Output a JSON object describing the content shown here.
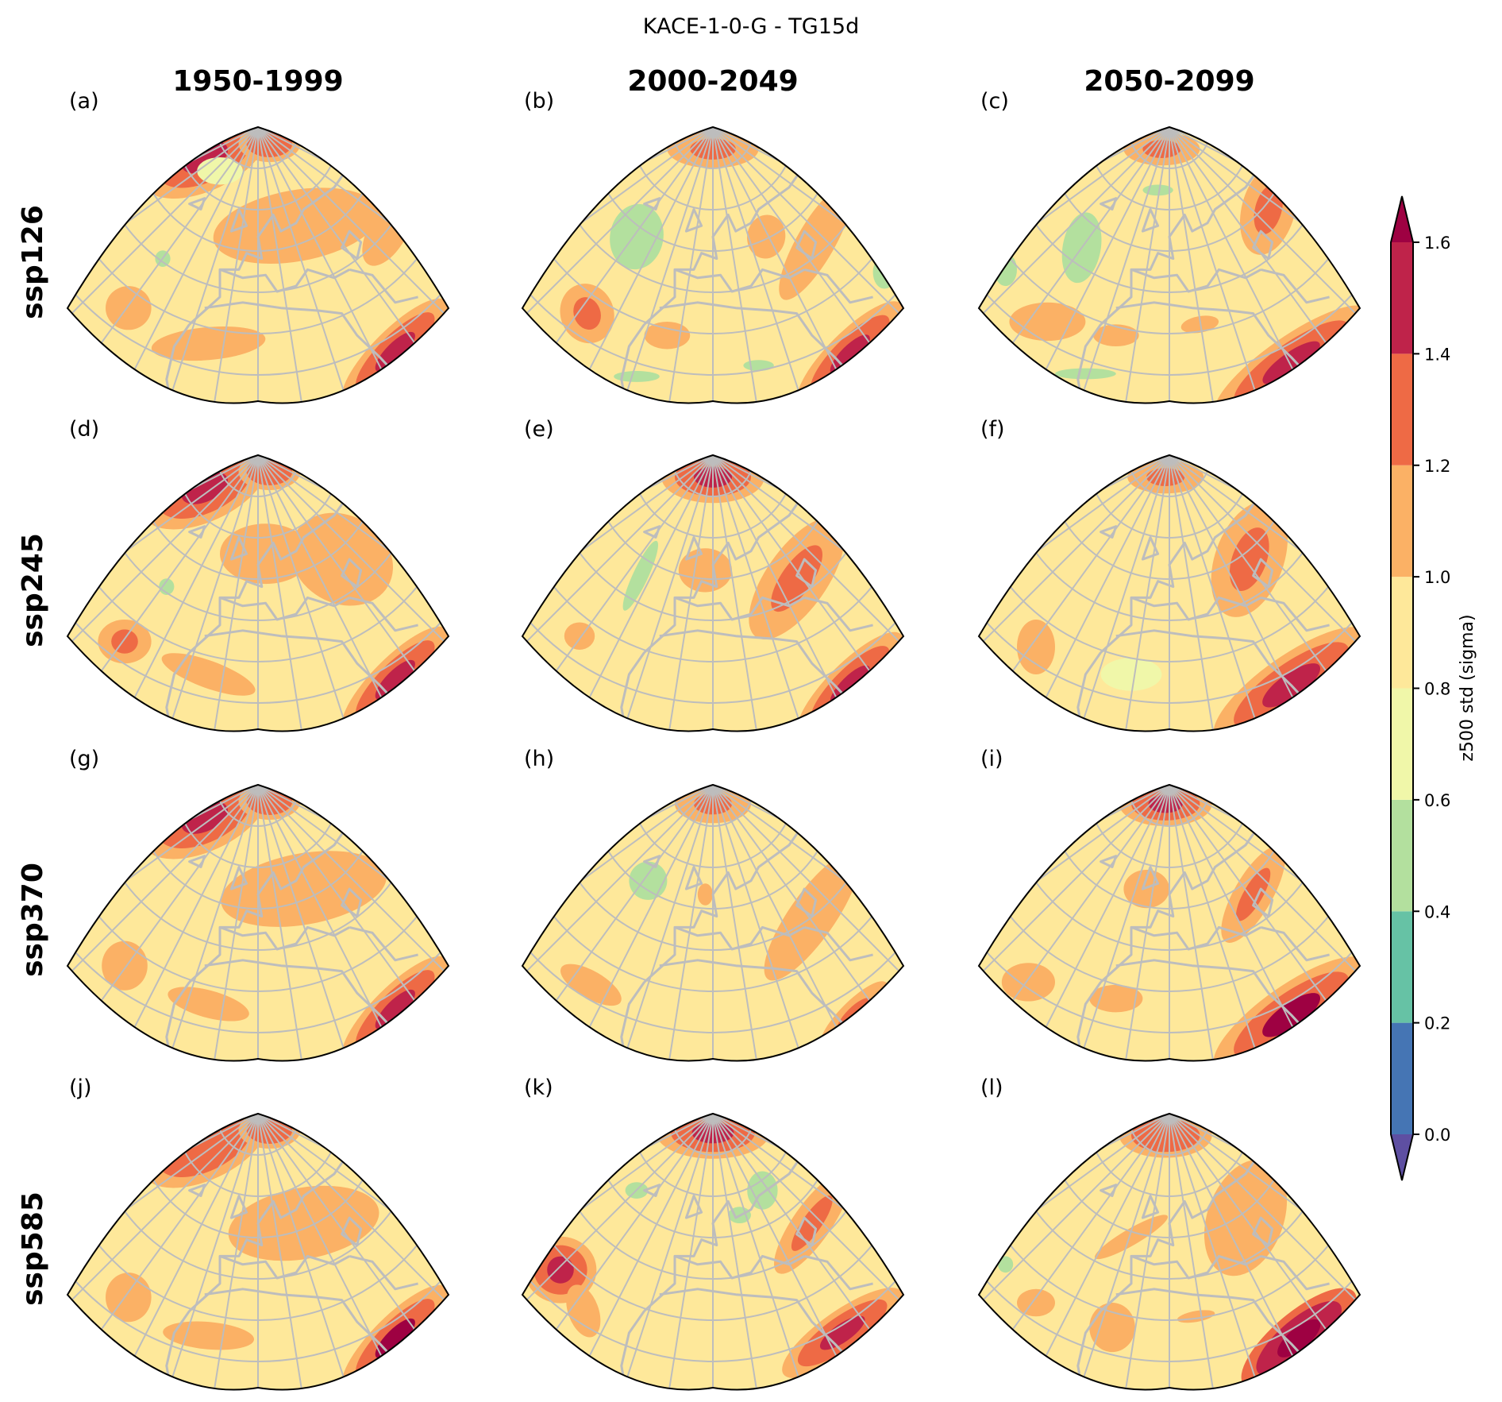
{
  "chart_data": {
    "type": "heatmap",
    "subtype": "filled-contour map grid",
    "title": "KACE-1-0-G - TG15d",
    "columns": [
      "1950-1999",
      "2000-2049",
      "2050-2099"
    ],
    "rows": [
      "ssp126",
      "ssp245",
      "ssp370",
      "ssp585"
    ],
    "panel_labels": [
      "(a)",
      "(b)",
      "(c)",
      "(d)",
      "(e)",
      "(f)",
      "(g)",
      "(h)",
      "(i)",
      "(j)",
      "(k)",
      "(l)"
    ],
    "region": "Europe / North Atlantic / North Africa (conic projection)",
    "colorbar": {
      "label": "z500 std (sigma)",
      "levels": [
        0.0,
        0.2,
        0.4,
        0.6,
        0.8,
        1.0,
        1.2,
        1.4,
        1.6
      ],
      "tick_labels": [
        "0.0",
        "0.2",
        "0.4",
        "0.6",
        "0.8",
        "1.0",
        "1.2",
        "1.4",
        "1.6"
      ],
      "colors": [
        "#4575b4",
        "#66c2a5",
        "#b3e09e",
        "#f0f7a9",
        "#fee89a",
        "#fbb165",
        "#ee6a45",
        "#bf234a"
      ],
      "under_color": "#5e4fa2",
      "over_color": "#9e0142",
      "extend": "both",
      "range": [
        0.0,
        1.6
      ]
    },
    "panels": [
      {
        "id": "a",
        "scenario": "ssp126",
        "period": "1950-1999",
        "background": 0.9,
        "blobs": [
          {
            "u": 0.36,
            "v": 0.11,
            "rx": 0.13,
            "ry": 0.09,
            "rot": -25,
            "value": 1.3,
            "peak": 1.5
          },
          {
            "u": 0.53,
            "v": 0.06,
            "rx": 0.06,
            "ry": 0.05,
            "rot": 0,
            "value": 1.3
          },
          {
            "u": 0.6,
            "v": 0.36,
            "rx": 0.22,
            "ry": 0.13,
            "rot": -10,
            "value": 1.1
          },
          {
            "u": 0.84,
            "v": 0.38,
            "rx": 0.05,
            "ry": 0.14,
            "rot": 30,
            "value": 1.1
          },
          {
            "u": 0.16,
            "v": 0.66,
            "rx": 0.06,
            "ry": 0.08,
            "rot": 0,
            "value": 1.1
          },
          {
            "u": 0.37,
            "v": 0.79,
            "rx": 0.15,
            "ry": 0.06,
            "rot": -5,
            "value": 1.1
          },
          {
            "u": 0.86,
            "v": 0.82,
            "rx": 0.14,
            "ry": 0.06,
            "rot": -45,
            "value": 1.3,
            "peak": 1.5
          },
          {
            "u": 0.25,
            "v": 0.48,
            "rx": 0.02,
            "ry": 0.03,
            "rot": 0,
            "value": 0.5
          },
          {
            "u": 0.4,
            "v": 0.16,
            "rx": 0.06,
            "ry": 0.05,
            "rot": 0,
            "value": 0.7
          }
        ]
      },
      {
        "id": "b",
        "scenario": "ssp126",
        "period": "2000-2049",
        "background": 0.8,
        "blobs": [
          {
            "u": 0.5,
            "v": 0.08,
            "rx": 0.12,
            "ry": 0.07,
            "rot": 0,
            "value": 1.1,
            "peak": 1.3
          },
          {
            "u": 0.3,
            "v": 0.4,
            "rx": 0.07,
            "ry": 0.12,
            "rot": 10,
            "value": 0.5
          },
          {
            "u": 0.64,
            "v": 0.4,
            "rx": 0.05,
            "ry": 0.08,
            "rot": 10,
            "value": 1.1
          },
          {
            "u": 0.77,
            "v": 0.42,
            "rx": 0.05,
            "ry": 0.24,
            "rot": 30,
            "value": 1.1
          },
          {
            "u": 0.17,
            "v": 0.68,
            "rx": 0.07,
            "ry": 0.11,
            "rot": -20,
            "value": 1.1,
            "peak": 1.3
          },
          {
            "u": 0.38,
            "v": 0.76,
            "rx": 0.06,
            "ry": 0.05,
            "rot": 0,
            "value": 1.1
          },
          {
            "u": 0.86,
            "v": 0.83,
            "rx": 0.14,
            "ry": 0.06,
            "rot": -45,
            "value": 1.3,
            "peak": 1.5
          },
          {
            "u": 0.3,
            "v": 0.91,
            "rx": 0.06,
            "ry": 0.02,
            "rot": 0,
            "value": 0.5
          },
          {
            "u": 0.62,
            "v": 0.87,
            "rx": 0.04,
            "ry": 0.02,
            "rot": 0,
            "value": 0.5
          },
          {
            "u": 0.95,
            "v": 0.53,
            "rx": 0.03,
            "ry": 0.06,
            "rot": 0,
            "value": 0.5
          }
        ]
      },
      {
        "id": "c",
        "scenario": "ssp126",
        "period": "2050-2099",
        "background": 0.8,
        "blobs": [
          {
            "u": 0.48,
            "v": 0.08,
            "rx": 0.1,
            "ry": 0.06,
            "rot": 0,
            "value": 1.1,
            "peak": 1.3
          },
          {
            "u": 0.27,
            "v": 0.44,
            "rx": 0.05,
            "ry": 0.13,
            "rot": 10,
            "value": 0.5
          },
          {
            "u": 0.47,
            "v": 0.23,
            "rx": 0.04,
            "ry": 0.02,
            "rot": 0,
            "value": 0.5
          },
          {
            "u": 0.76,
            "v": 0.3,
            "rx": 0.07,
            "ry": 0.17,
            "rot": 15,
            "value": 1.1,
            "peak": 1.3
          },
          {
            "u": 0.18,
            "v": 0.71,
            "rx": 0.1,
            "ry": 0.07,
            "rot": 0,
            "value": 1.1
          },
          {
            "u": 0.36,
            "v": 0.76,
            "rx": 0.06,
            "ry": 0.04,
            "rot": 0,
            "value": 1.1
          },
          {
            "u": 0.58,
            "v": 0.72,
            "rx": 0.05,
            "ry": 0.03,
            "rot": -10,
            "value": 1.1
          },
          {
            "u": 0.82,
            "v": 0.86,
            "rx": 0.18,
            "ry": 0.07,
            "rot": -35,
            "value": 1.3,
            "peak": 1.5
          },
          {
            "u": 0.28,
            "v": 0.9,
            "rx": 0.08,
            "ry": 0.02,
            "rot": 0,
            "value": 0.5
          },
          {
            "u": 0.07,
            "v": 0.52,
            "rx": 0.03,
            "ry": 0.06,
            "rot": 0,
            "value": 0.5
          }
        ]
      },
      {
        "id": "d",
        "scenario": "ssp245",
        "period": "1950-1999",
        "background": 0.9,
        "blobs": [
          {
            "u": 0.36,
            "v": 0.12,
            "rx": 0.13,
            "ry": 0.09,
            "rot": -25,
            "value": 1.3,
            "peak": 1.5
          },
          {
            "u": 0.53,
            "v": 0.06,
            "rx": 0.06,
            "ry": 0.05,
            "rot": 0,
            "value": 1.3
          },
          {
            "u": 0.52,
            "v": 0.36,
            "rx": 0.12,
            "ry": 0.11,
            "rot": 0,
            "value": 1.1
          },
          {
            "u": 0.72,
            "v": 0.38,
            "rx": 0.14,
            "ry": 0.16,
            "rot": 30,
            "value": 1.1
          },
          {
            "u": 0.15,
            "v": 0.68,
            "rx": 0.07,
            "ry": 0.08,
            "rot": 0,
            "value": 1.1,
            "peak": 1.3
          },
          {
            "u": 0.37,
            "v": 0.8,
            "rx": 0.13,
            "ry": 0.05,
            "rot": 20,
            "value": 1.1
          },
          {
            "u": 0.86,
            "v": 0.82,
            "rx": 0.14,
            "ry": 0.06,
            "rot": -45,
            "value": 1.3,
            "peak": 1.5
          },
          {
            "u": 0.26,
            "v": 0.48,
            "rx": 0.02,
            "ry": 0.03,
            "rot": 0,
            "value": 0.5
          }
        ]
      },
      {
        "id": "e",
        "scenario": "ssp245",
        "period": "2000-2049",
        "background": 0.8,
        "blobs": [
          {
            "u": 0.5,
            "v": 0.08,
            "rx": 0.1,
            "ry": 0.07,
            "rot": 0,
            "value": 1.3,
            "peak": 1.5
          },
          {
            "u": 0.31,
            "v": 0.44,
            "rx": 0.02,
            "ry": 0.14,
            "rot": 25,
            "value": 0.5
          },
          {
            "u": 0.48,
            "v": 0.42,
            "rx": 0.07,
            "ry": 0.08,
            "rot": 0,
            "value": 1.1
          },
          {
            "u": 0.72,
            "v": 0.45,
            "rx": 0.08,
            "ry": 0.26,
            "rot": 35,
            "value": 1.1,
            "peak": 1.3
          },
          {
            "u": 0.15,
            "v": 0.66,
            "rx": 0.04,
            "ry": 0.05,
            "rot": 0,
            "value": 1.1
          },
          {
            "u": 0.86,
            "v": 0.84,
            "rx": 0.14,
            "ry": 0.06,
            "rot": -45,
            "value": 1.3,
            "peak": 1.5
          }
        ]
      },
      {
        "id": "f",
        "scenario": "ssp245",
        "period": "2050-2099",
        "background": 0.9,
        "blobs": [
          {
            "u": 0.49,
            "v": 0.08,
            "rx": 0.1,
            "ry": 0.06,
            "rot": 0,
            "value": 1.1,
            "peak": 1.3
          },
          {
            "u": 0.71,
            "v": 0.38,
            "rx": 0.09,
            "ry": 0.22,
            "rot": 20,
            "value": 1.1,
            "peak": 1.3
          },
          {
            "u": 0.15,
            "v": 0.7,
            "rx": 0.05,
            "ry": 0.1,
            "rot": 0,
            "value": 1.1
          },
          {
            "u": 0.82,
            "v": 0.84,
            "rx": 0.18,
            "ry": 0.08,
            "rot": -35,
            "value": 1.3,
            "peak": 1.5
          },
          {
            "u": 0.4,
            "v": 0.8,
            "rx": 0.08,
            "ry": 0.06,
            "rot": 0,
            "value": 0.7
          }
        ]
      },
      {
        "id": "g",
        "scenario": "ssp370",
        "period": "1950-1999",
        "background": 0.9,
        "blobs": [
          {
            "u": 0.36,
            "v": 0.12,
            "rx": 0.13,
            "ry": 0.09,
            "rot": -25,
            "value": 1.3,
            "peak": 1.5
          },
          {
            "u": 0.53,
            "v": 0.06,
            "rx": 0.06,
            "ry": 0.05,
            "rot": 0,
            "value": 1.3
          },
          {
            "u": 0.62,
            "v": 0.38,
            "rx": 0.22,
            "ry": 0.13,
            "rot": -10,
            "value": 1.1
          },
          {
            "u": 0.15,
            "v": 0.66,
            "rx": 0.06,
            "ry": 0.09,
            "rot": 0,
            "value": 1.1
          },
          {
            "u": 0.37,
            "v": 0.8,
            "rx": 0.11,
            "ry": 0.05,
            "rot": 15,
            "value": 1.1
          },
          {
            "u": 0.86,
            "v": 0.82,
            "rx": 0.14,
            "ry": 0.06,
            "rot": -45,
            "value": 1.3,
            "peak": 1.5
          }
        ]
      },
      {
        "id": "h",
        "scenario": "ssp370",
        "period": "2000-2049",
        "background": 0.8,
        "blobs": [
          {
            "u": 0.5,
            "v": 0.07,
            "rx": 0.1,
            "ry": 0.07,
            "rot": 0,
            "value": 1.1,
            "peak": 1.3
          },
          {
            "u": 0.33,
            "v": 0.35,
            "rx": 0.05,
            "ry": 0.07,
            "rot": 10,
            "value": 0.5
          },
          {
            "u": 0.48,
            "v": 0.4,
            "rx": 0.02,
            "ry": 0.04,
            "rot": 0,
            "value": 1.1
          },
          {
            "u": 0.76,
            "v": 0.48,
            "rx": 0.06,
            "ry": 0.28,
            "rot": 35,
            "value": 1.1
          },
          {
            "u": 0.18,
            "v": 0.73,
            "rx": 0.09,
            "ry": 0.05,
            "rot": 30,
            "value": 1.1
          },
          {
            "u": 0.87,
            "v": 0.84,
            "rx": 0.12,
            "ry": 0.05,
            "rot": -45,
            "value": 1.1,
            "peak": 1.3
          },
          {
            "u": 0.15,
            "v": 0.93,
            "rx": 0.06,
            "ry": 0.02,
            "rot": 20,
            "value": 0.5
          }
        ]
      },
      {
        "id": "i",
        "scenario": "ssp370",
        "period": "2050-2099",
        "background": 0.8,
        "blobs": [
          {
            "u": 0.49,
            "v": 0.07,
            "rx": 0.09,
            "ry": 0.06,
            "rot": 0,
            "value": 1.3,
            "peak": 1.5
          },
          {
            "u": 0.44,
            "v": 0.38,
            "rx": 0.06,
            "ry": 0.07,
            "rot": 0,
            "value": 1.1
          },
          {
            "u": 0.72,
            "v": 0.4,
            "rx": 0.05,
            "ry": 0.2,
            "rot": 30,
            "value": 1.1,
            "peak": 1.3
          },
          {
            "u": 0.13,
            "v": 0.72,
            "rx": 0.07,
            "ry": 0.07,
            "rot": 0,
            "value": 1.1
          },
          {
            "u": 0.36,
            "v": 0.78,
            "rx": 0.07,
            "ry": 0.05,
            "rot": 0,
            "value": 1.1
          },
          {
            "u": 0.82,
            "v": 0.84,
            "rx": 0.18,
            "ry": 0.08,
            "rot": -35,
            "value": 1.3,
            "peak": 1.6
          }
        ]
      },
      {
        "id": "j",
        "scenario": "ssp585",
        "period": "1950-1999",
        "background": 0.9,
        "blobs": [
          {
            "u": 0.36,
            "v": 0.12,
            "rx": 0.13,
            "ry": 0.09,
            "rot": -25,
            "value": 1.3
          },
          {
            "u": 0.53,
            "v": 0.06,
            "rx": 0.06,
            "ry": 0.05,
            "rot": 0,
            "value": 1.3
          },
          {
            "u": 0.62,
            "v": 0.4,
            "rx": 0.2,
            "ry": 0.13,
            "rot": -10,
            "value": 1.1
          },
          {
            "u": 0.16,
            "v": 0.67,
            "rx": 0.06,
            "ry": 0.09,
            "rot": 0,
            "value": 1.1
          },
          {
            "u": 0.37,
            "v": 0.81,
            "rx": 0.12,
            "ry": 0.05,
            "rot": 5,
            "value": 1.1
          },
          {
            "u": 0.86,
            "v": 0.82,
            "rx": 0.14,
            "ry": 0.06,
            "rot": -45,
            "value": 1.3,
            "peak": 1.6
          }
        ]
      },
      {
        "id": "k",
        "scenario": "ssp585",
        "period": "2000-2049",
        "background": 0.8,
        "blobs": [
          {
            "u": 0.5,
            "v": 0.07,
            "rx": 0.11,
            "ry": 0.07,
            "rot": 0,
            "value": 1.3,
            "peak": 1.5
          },
          {
            "u": 0.3,
            "v": 0.28,
            "rx": 0.03,
            "ry": 0.03,
            "rot": 0,
            "value": 0.5
          },
          {
            "u": 0.63,
            "v": 0.28,
            "rx": 0.04,
            "ry": 0.07,
            "rot": 0,
            "value": 0.5
          },
          {
            "u": 0.57,
            "v": 0.37,
            "rx": 0.03,
            "ry": 0.03,
            "rot": 0,
            "value": 0.5
          },
          {
            "u": 0.76,
            "v": 0.4,
            "rx": 0.05,
            "ry": 0.22,
            "rot": 35,
            "value": 1.1,
            "peak": 1.3
          },
          {
            "u": 0.1,
            "v": 0.57,
            "rx": 0.07,
            "ry": 0.09,
            "rot": 0,
            "value": 1.3,
            "peak": 1.5
          },
          {
            "u": 0.16,
            "v": 0.72,
            "rx": 0.04,
            "ry": 0.1,
            "rot": -20,
            "value": 1.1
          },
          {
            "u": 0.84,
            "v": 0.8,
            "rx": 0.14,
            "ry": 0.06,
            "rot": -35,
            "value": 1.3,
            "peak": 1.5
          }
        ]
      },
      {
        "id": "l",
        "scenario": "ssp585",
        "period": "2050-2099",
        "background": 0.9,
        "blobs": [
          {
            "u": 0.49,
            "v": 0.08,
            "rx": 0.09,
            "ry": 0.06,
            "rot": 0,
            "value": 1.3
          },
          {
            "u": 0.4,
            "v": 0.45,
            "rx": 0.11,
            "ry": 0.03,
            "rot": -30,
            "value": 1.1
          },
          {
            "u": 0.7,
            "v": 0.38,
            "rx": 0.1,
            "ry": 0.22,
            "rot": 20,
            "value": 1.1
          },
          {
            "u": 0.07,
            "v": 0.55,
            "rx": 0.02,
            "ry": 0.03,
            "rot": 0,
            "value": 0.5
          },
          {
            "u": 0.15,
            "v": 0.69,
            "rx": 0.05,
            "ry": 0.05,
            "rot": 0,
            "value": 1.1
          },
          {
            "u": 0.35,
            "v": 0.78,
            "rx": 0.06,
            "ry": 0.09,
            "rot": 0,
            "value": 1.1
          },
          {
            "u": 0.57,
            "v": 0.74,
            "rx": 0.05,
            "ry": 0.02,
            "rot": -10,
            "value": 1.1
          },
          {
            "u": 0.84,
            "v": 0.82,
            "rx": 0.14,
            "ry": 0.07,
            "rot": -40,
            "value": 1.4,
            "peak": 1.6
          }
        ]
      }
    ]
  }
}
